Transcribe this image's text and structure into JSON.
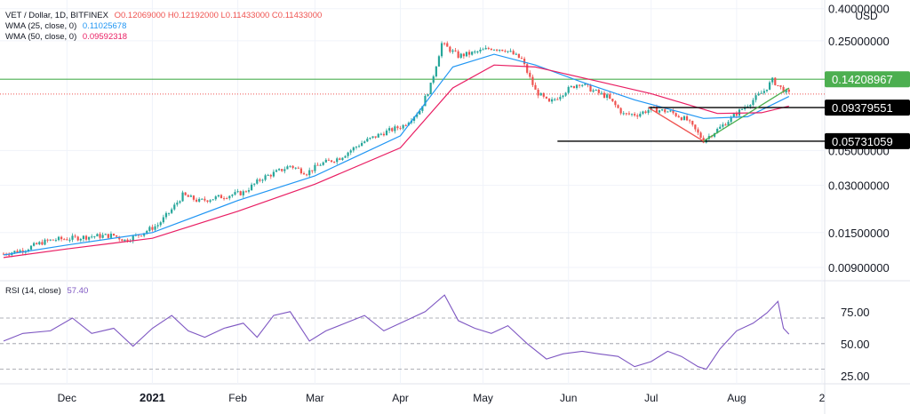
{
  "header": {
    "symbol": "VET / Dollar, 1D, BITFINEX",
    "ohlc": "O0.12069000 H0.12192000 L0.11433000 C0.11433000",
    "wma25_label": "WMA (25, close, 0)",
    "wma25_value": "0.11025678",
    "wma50_label": "WMA (50, close, 0)",
    "wma50_value": "0.09592318",
    "rsi_label": "RSI (14, close)",
    "rsi_value": "57.40"
  },
  "colors": {
    "up": "#26a69a",
    "down": "#ef5350",
    "wma25": "#2196f3",
    "wma50": "#e91e63",
    "resistance": "#4caf50",
    "rsi": "#7e57c2",
    "axis_text": "#131722",
    "black_tag": "#000000"
  },
  "chart_data": [
    {
      "type": "candlestick",
      "title": "VET / Dollar, 1D, BITFINEX",
      "y_scale": "log",
      "currency_label": "USD",
      "y_tick_labels": [
        "0.40000000",
        "0.25000000",
        "0.05000000",
        "0.03000000",
        "0.01500000",
        "0.00900000"
      ],
      "y_ticks": [
        0.4,
        0.25,
        0.05,
        0.03,
        0.015,
        0.009
      ],
      "x_tick_labels": [
        "Dec",
        "2021",
        "Feb",
        "Mar",
        "Apr",
        "May",
        "Jun",
        "Jul",
        "Aug",
        "2"
      ],
      "x_tick_dates": [
        "2020-12-01",
        "2021-01-01",
        "2021-02-01",
        "2021-03-01",
        "2021-04-01",
        "2021-05-01",
        "2021-06-01",
        "2021-07-01",
        "2021-08-01",
        "2021-09-01"
      ],
      "x_range": [
        "2020-11-08",
        "2021-09-01"
      ],
      "y_range": [
        0.0078,
        0.42
      ],
      "price_close_path": [
        [
          "2020-11-08",
          0.011
        ],
        [
          "2020-11-15",
          0.0116
        ],
        [
          "2020-11-22",
          0.013
        ],
        [
          "2020-11-26",
          0.0135
        ],
        [
          "2020-12-03",
          0.0138
        ],
        [
          "2020-12-10",
          0.0142
        ],
        [
          "2020-12-18",
          0.0144
        ],
        [
          "2020-12-22",
          0.0134
        ],
        [
          "2020-12-27",
          0.0145
        ],
        [
          "2021-01-03",
          0.0168
        ],
        [
          "2021-01-08",
          0.021
        ],
        [
          "2021-01-12",
          0.026
        ],
        [
          "2021-01-18",
          0.0238
        ],
        [
          "2021-01-25",
          0.0252
        ],
        [
          "2021-02-03",
          0.027
        ],
        [
          "2021-02-10",
          0.0335
        ],
        [
          "2021-02-16",
          0.037
        ],
        [
          "2021-02-20",
          0.04
        ],
        [
          "2021-02-26",
          0.036
        ],
        [
          "2021-03-03",
          0.041
        ],
        [
          "2021-03-10",
          0.045
        ],
        [
          "2021-03-18",
          0.056
        ],
        [
          "2021-03-26",
          0.065
        ],
        [
          "2021-04-02",
          0.072
        ],
        [
          "2021-04-08",
          0.09
        ],
        [
          "2021-04-12",
          0.13
        ],
        [
          "2021-04-16",
          0.24
        ],
        [
          "2021-04-22",
          0.2
        ],
        [
          "2021-04-28",
          0.21
        ],
        [
          "2021-05-04",
          0.225
        ],
        [
          "2021-05-09",
          0.22
        ],
        [
          "2021-05-15",
          0.19
        ],
        [
          "2021-05-20",
          0.12
        ],
        [
          "2021-05-25",
          0.1
        ],
        [
          "2021-05-31",
          0.12
        ],
        [
          "2021-06-05",
          0.135
        ],
        [
          "2021-06-10",
          0.12
        ],
        [
          "2021-06-15",
          0.11
        ],
        [
          "2021-06-21",
          0.085
        ],
        [
          "2021-06-26",
          0.085
        ],
        [
          "2021-07-01",
          0.092
        ],
        [
          "2021-07-08",
          0.088
        ],
        [
          "2021-07-14",
          0.078
        ],
        [
          "2021-07-20",
          0.058
        ],
        [
          "2021-07-26",
          0.07
        ],
        [
          "2021-08-01",
          0.086
        ],
        [
          "2021-08-07",
          0.105
        ],
        [
          "2021-08-11",
          0.12
        ],
        [
          "2021-08-14",
          0.14
        ],
        [
          "2021-08-17",
          0.125
        ],
        [
          "2021-08-20",
          0.1143
        ]
      ],
      "series": [
        {
          "name": "WMA (25, close, 0)",
          "points": [
            [
              "2020-11-08",
              0.0108
            ],
            [
              "2020-12-01",
              0.0125
            ],
            [
              "2021-01-01",
              0.015
            ],
            [
              "2021-02-01",
              0.024
            ],
            [
              "2021-03-01",
              0.0345
            ],
            [
              "2021-04-01",
              0.062
            ],
            [
              "2021-04-20",
              0.17
            ],
            [
              "2021-05-05",
              0.205
            ],
            [
              "2021-05-20",
              0.175
            ],
            [
              "2021-06-05",
              0.138
            ],
            [
              "2021-06-25",
              0.105
            ],
            [
              "2021-07-20",
              0.08
            ],
            [
              "2021-08-05",
              0.082
            ],
            [
              "2021-08-20",
              0.1103
            ]
          ]
        },
        {
          "name": "WMA (50, close, 0)",
          "points": [
            [
              "2020-11-08",
              0.0104
            ],
            [
              "2020-12-01",
              0.0118
            ],
            [
              "2021-01-01",
              0.0138
            ],
            [
              "2021-02-01",
              0.0205
            ],
            [
              "2021-03-01",
              0.0305
            ],
            [
              "2021-04-01",
              0.052
            ],
            [
              "2021-04-20",
              0.125
            ],
            [
              "2021-05-05",
              0.175
            ],
            [
              "2021-05-20",
              0.17
            ],
            [
              "2021-06-10",
              0.14
            ],
            [
              "2021-07-01",
              0.115
            ],
            [
              "2021-07-25",
              0.086
            ],
            [
              "2021-08-10",
              0.087
            ],
            [
              "2021-08-20",
              0.0959
            ]
          ]
        }
      ],
      "annotations": {
        "horizontal_levels": [
          {
            "value": 0.14208967,
            "label": "0.14208967",
            "style": "green-line"
          },
          {
            "value": 0.09379551,
            "label": "0.09379551",
            "style": "black-segment"
          },
          {
            "value": 0.05731059,
            "label": "0.05731059",
            "style": "black-segment"
          }
        ],
        "last_price_line": 0.11433,
        "trend_lines": [
          {
            "from": [
              "2021-06-30",
              0.0938
            ],
            "to": [
              "2021-07-20",
              0.0573
            ],
            "color": "#ef5350"
          },
          {
            "from": [
              "2021-07-20",
              0.0573
            ],
            "to": [
              "2021-08-20",
              0.125
            ],
            "color": "#4caf50"
          }
        ]
      }
    },
    {
      "type": "line",
      "title": "RSI (14, close)",
      "y_tick_labels": [
        "75.00",
        "50.00",
        "25.00"
      ],
      "y_ticks": [
        75,
        50,
        25
      ],
      "y_range": [
        20,
        95
      ],
      "bands": [
        70,
        50,
        30
      ],
      "x_range": [
        "2020-11-08",
        "2021-09-01"
      ],
      "series": [
        {
          "name": "RSI (14, close)",
          "points": [
            [
              "2020-11-08",
              52
            ],
            [
              "2020-11-15",
              58
            ],
            [
              "2020-11-25",
              60
            ],
            [
              "2020-12-03",
              70
            ],
            [
              "2020-12-10",
              58
            ],
            [
              "2020-12-18",
              62
            ],
            [
              "2020-12-25",
              48
            ],
            [
              "2021-01-01",
              62
            ],
            [
              "2021-01-08",
              72
            ],
            [
              "2021-01-14",
              60
            ],
            [
              "2021-01-20",
              55
            ],
            [
              "2021-01-27",
              62
            ],
            [
              "2021-02-03",
              66
            ],
            [
              "2021-02-08",
              55
            ],
            [
              "2021-02-14",
              72
            ],
            [
              "2021-02-20",
              75
            ],
            [
              "2021-02-27",
              52
            ],
            [
              "2021-03-05",
              60
            ],
            [
              "2021-03-12",
              66
            ],
            [
              "2021-03-19",
              72
            ],
            [
              "2021-03-26",
              60
            ],
            [
              "2021-04-03",
              68
            ],
            [
              "2021-04-10",
              75
            ],
            [
              "2021-04-17",
              88
            ],
            [
              "2021-04-22",
              68
            ],
            [
              "2021-04-28",
              62
            ],
            [
              "2021-05-04",
              58
            ],
            [
              "2021-05-10",
              64
            ],
            [
              "2021-05-17",
              50
            ],
            [
              "2021-05-24",
              38
            ],
            [
              "2021-05-30",
              42
            ],
            [
              "2021-06-06",
              44
            ],
            [
              "2021-06-12",
              42
            ],
            [
              "2021-06-19",
              40
            ],
            [
              "2021-06-25",
              32
            ],
            [
              "2021-07-01",
              36
            ],
            [
              "2021-07-07",
              44
            ],
            [
              "2021-07-12",
              40
            ],
            [
              "2021-07-18",
              32
            ],
            [
              "2021-07-21",
              30
            ],
            [
              "2021-07-26",
              46
            ],
            [
              "2021-08-01",
              60
            ],
            [
              "2021-08-07",
              66
            ],
            [
              "2021-08-12",
              74
            ],
            [
              "2021-08-16",
              83
            ],
            [
              "2021-08-18",
              62
            ],
            [
              "2021-08-20",
              57.4
            ]
          ]
        }
      ]
    }
  ]
}
